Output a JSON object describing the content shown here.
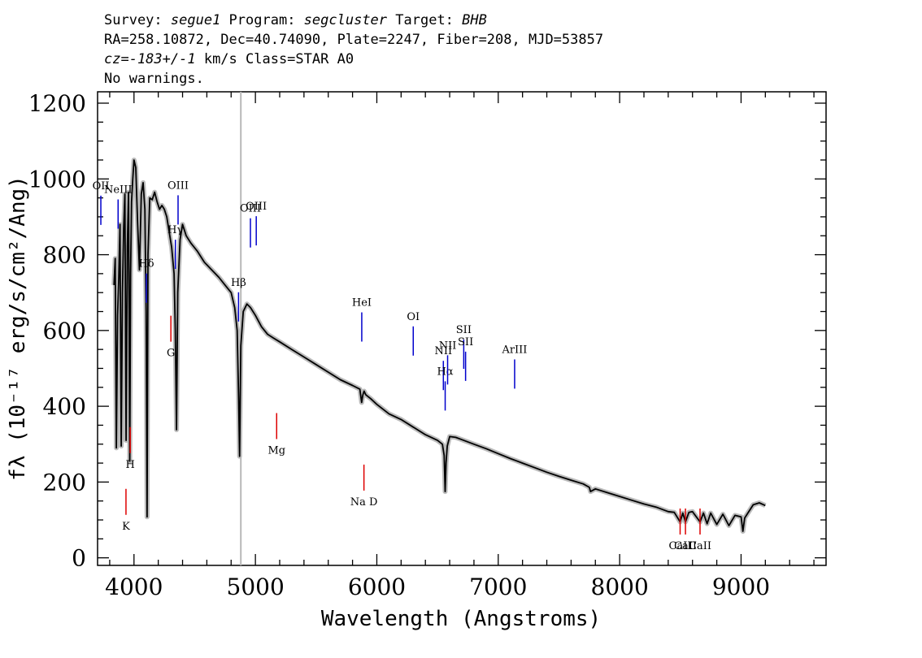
{
  "header": {
    "line1": {
      "survey_label": "Survey: ",
      "survey": "segue1",
      "program_label": " Program: ",
      "program": "segcluster",
      "target_label": " Target: ",
      "target": "BHB"
    },
    "line2": "RA=258.10872, Dec=40.74090, Plate=2247, Fiber=208, MJD=53857",
    "line3": {
      "cz": "cz=-183+/-1",
      "rest": " km/s Class=STAR A0"
    },
    "line4": "No warnings."
  },
  "chart_data": {
    "type": "line",
    "xlabel": "Wavelength (Angstroms)",
    "ylabel": "fλ (10⁻¹⁷ erg/s/cm²/Ang)",
    "xlim": [
      3700,
      9700
    ],
    "ylim": [
      -20,
      1230
    ],
    "x_ticks": [
      4000,
      5000,
      6000,
      7000,
      8000,
      9000
    ],
    "x_tick_labels": [
      "4000",
      "5000",
      "6000",
      "7000",
      "8000",
      "9000"
    ],
    "y_ticks": [
      0,
      200,
      400,
      600,
      800,
      1000,
      1200
    ],
    "y_tick_labels": [
      "0",
      "200",
      "400",
      "600",
      "800",
      "1000",
      "1200"
    ],
    "grid": false,
    "reference_line_x": 4880,
    "series": [
      {
        "name": "",
        "color": "#000000",
        "error_color": "#bbbbbb",
        "x": [
          3835,
          3845,
          3855,
          3865,
          3875,
          3885,
          3895,
          3905,
          3915,
          3925,
          3935,
          3945,
          3955,
          3965,
          3972,
          3980,
          3990,
          4000,
          4015,
          4030,
          4045,
          4060,
          4075,
          4090,
          4100,
          4108,
          4115,
          4130,
          4150,
          4170,
          4190,
          4210,
          4230,
          4250,
          4270,
          4290,
          4310,
          4330,
          4340,
          4350,
          4360,
          4380,
          4400,
          4430,
          4470,
          4520,
          4580,
          4640,
          4700,
          4750,
          4800,
          4830,
          4850,
          4862,
          4870,
          4880,
          4900,
          4930,
          4960,
          5000,
          5050,
          5100,
          5150,
          5200,
          5300,
          5400,
          5500,
          5600,
          5700,
          5800,
          5860,
          5875,
          5885,
          5895,
          5910,
          5950,
          6000,
          6100,
          6200,
          6300,
          6400,
          6500,
          6540,
          6555,
          6563,
          6570,
          6580,
          6600,
          6650,
          6700,
          6800,
          6900,
          7000,
          7100,
          7200,
          7300,
          7400,
          7500,
          7600,
          7700,
          7750,
          7760,
          7800,
          7900,
          8000,
          8100,
          8200,
          8300,
          8400,
          8450,
          8498,
          8520,
          8542,
          8570,
          8600,
          8662,
          8690,
          8720,
          8750,
          8800,
          8850,
          8900,
          8950,
          9000,
          9015,
          9030,
          9050,
          9100,
          9150,
          9200
        ],
        "y": [
          720,
          790,
          290,
          640,
          740,
          880,
          295,
          700,
          870,
          960,
          310,
          820,
          965,
          255,
          750,
          940,
          1000,
          1050,
          1030,
          880,
          760,
          960,
          990,
          920,
          650,
          108,
          800,
          950,
          945,
          965,
          940,
          920,
          930,
          920,
          900,
          860,
          820,
          750,
          600,
          338,
          700,
          840,
          880,
          850,
          830,
          810,
          780,
          760,
          740,
          720,
          700,
          660,
          600,
          420,
          268,
          560,
          650,
          670,
          660,
          640,
          610,
          590,
          580,
          570,
          550,
          530,
          510,
          490,
          470,
          455,
          445,
          410,
          430,
          440,
          430,
          420,
          405,
          380,
          365,
          345,
          325,
          310,
          300,
          270,
          175,
          250,
          295,
          320,
          318,
          312,
          300,
          288,
          275,
          262,
          250,
          238,
          226,
          215,
          205,
          195,
          186,
          175,
          182,
          172,
          162,
          152,
          142,
          134,
          122,
          120,
          95,
          118,
          95,
          120,
          122,
          95,
          118,
          90,
          118,
          88,
          115,
          85,
          112,
          108,
          70,
          105,
          115,
          140,
          145,
          138
        ]
      }
    ],
    "emission_lines": [
      {
        "label": "OII",
        "x": 3727
      },
      {
        "label": "NeIII",
        "x": 3869
      },
      {
        "label": "Hδ",
        "x": 4102
      },
      {
        "label": "Hγ",
        "x": 4341
      },
      {
        "label": "OIII",
        "x": 4363
      },
      {
        "label": "Hβ",
        "x": 4861
      },
      {
        "label": "OIII",
        "x": 4959
      },
      {
        "label": "OIII",
        "x": 5007
      },
      {
        "label": "HeI",
        "x": 5876
      },
      {
        "label": "OI",
        "x": 6300
      },
      {
        "label": "NII",
        "x": 6548
      },
      {
        "label": "Hα",
        "x": 6563
      },
      {
        "label": "NII",
        "x": 6583
      },
      {
        "label": "SII",
        "x": 6716
      },
      {
        "label": "SII",
        "x": 6731
      },
      {
        "label": "ArIII",
        "x": 7135
      }
    ],
    "absorption_lines": [
      {
        "label": "K",
        "x": 3934
      },
      {
        "label": "H",
        "x": 3969
      },
      {
        "label": "G",
        "x": 4304
      },
      {
        "label": "Mg",
        "x": 5175
      },
      {
        "label": "Na D",
        "x": 5894
      },
      {
        "label": "CaII",
        "x": 8498
      },
      {
        "label": "CaII",
        "x": 8542
      },
      {
        "label": "CaII",
        "x": 8662
      }
    ],
    "emission_color": "#0000cc",
    "absorption_color": "#dd0000"
  }
}
